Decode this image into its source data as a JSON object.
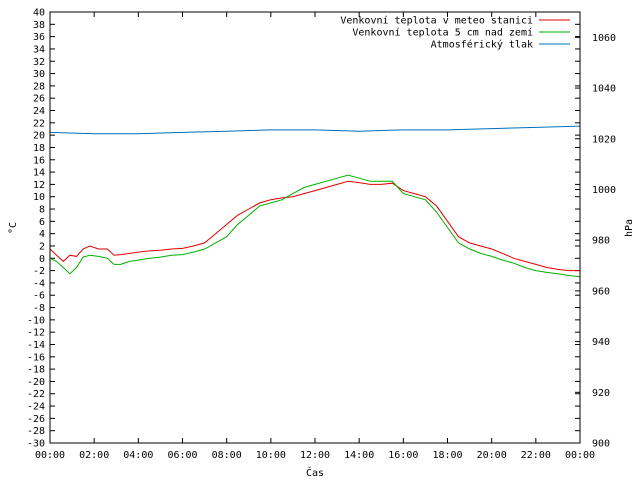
{
  "chart_data": {
    "type": "line",
    "title": "",
    "xlabel": "Čas",
    "ylabel_left": "°C",
    "ylabel_right": "hPa",
    "x_ticks": [
      "00:00",
      "02:00",
      "04:00",
      "06:00",
      "08:00",
      "10:00",
      "12:00",
      "14:00",
      "16:00",
      "18:00",
      "20:00",
      "22:00",
      "00:00"
    ],
    "xlim_hours": [
      0,
      24
    ],
    "ylim_left": [
      -30,
      40
    ],
    "ylim_right": [
      900,
      1070
    ],
    "left_ticks": [
      40,
      38,
      36,
      34,
      32,
      30,
      28,
      26,
      24,
      22,
      20,
      18,
      16,
      14,
      12,
      10,
      8,
      6,
      4,
      2,
      0,
      -2,
      -4,
      -6,
      -8,
      -10,
      -12,
      -14,
      -16,
      -18,
      -20,
      -22,
      -24,
      -26,
      -28,
      -30
    ],
    "right_ticks": [
      1060,
      1040,
      1020,
      1000,
      980,
      960,
      940,
      920,
      900
    ],
    "grid": false,
    "legend_position": "top-right",
    "series": [
      {
        "name": "Venkovní teplota v meteo stanici",
        "color": "#e00000",
        "axis": "left",
        "points": [
          [
            0,
            1.5
          ],
          [
            0.3,
            0.5
          ],
          [
            0.6,
            -0.5
          ],
          [
            0.9,
            0.5
          ],
          [
            1.2,
            0.3
          ],
          [
            1.5,
            1.5
          ],
          [
            1.8,
            2
          ],
          [
            2.2,
            1.5
          ],
          [
            2.6,
            1.5
          ],
          [
            2.9,
            0.5
          ],
          [
            3.2,
            0.6
          ],
          [
            3.6,
            0.8
          ],
          [
            4,
            1
          ],
          [
            4.5,
            1.2
          ],
          [
            5,
            1.3
          ],
          [
            5.5,
            1.5
          ],
          [
            6,
            1.6
          ],
          [
            6.5,
            2
          ],
          [
            7,
            2.5
          ],
          [
            7.5,
            4
          ],
          [
            8,
            5.5
          ],
          [
            8.5,
            7
          ],
          [
            9,
            8
          ],
          [
            9.5,
            9
          ],
          [
            10,
            9.5
          ],
          [
            10.5,
            9.8
          ],
          [
            11,
            10
          ],
          [
            11.5,
            10.5
          ],
          [
            12,
            11
          ],
          [
            12.5,
            11.5
          ],
          [
            13,
            12
          ],
          [
            13.5,
            12.5
          ],
          [
            14,
            12.3
          ],
          [
            14.5,
            12
          ],
          [
            15,
            12
          ],
          [
            15.5,
            12.2
          ],
          [
            16,
            11
          ],
          [
            16.5,
            10.5
          ],
          [
            17,
            10
          ],
          [
            17.5,
            8.5
          ],
          [
            18,
            6
          ],
          [
            18.5,
            3.5
          ],
          [
            19,
            2.5
          ],
          [
            19.5,
            2
          ],
          [
            20,
            1.5
          ],
          [
            20.5,
            0.8
          ],
          [
            21,
            0
          ],
          [
            21.5,
            -0.5
          ],
          [
            22,
            -1
          ],
          [
            22.5,
            -1.5
          ],
          [
            23,
            -1.8
          ],
          [
            23.5,
            -2
          ],
          [
            24,
            -2
          ]
        ]
      },
      {
        "name": "Venkovní teplota 5 cm nad zemí",
        "color": "#00b000",
        "axis": "left",
        "points": [
          [
            0,
            0
          ],
          [
            0.3,
            -0.5
          ],
          [
            0.6,
            -1.5
          ],
          [
            0.9,
            -2.5
          ],
          [
            1.2,
            -1.5
          ],
          [
            1.5,
            0.2
          ],
          [
            1.8,
            0.5
          ],
          [
            2.2,
            0.3
          ],
          [
            2.6,
            0
          ],
          [
            2.9,
            -1
          ],
          [
            3.2,
            -1
          ],
          [
            3.6,
            -0.5
          ],
          [
            4,
            -0.3
          ],
          [
            4.5,
            0
          ],
          [
            5,
            0.2
          ],
          [
            5.5,
            0.5
          ],
          [
            6,
            0.6
          ],
          [
            6.5,
            1
          ],
          [
            7,
            1.5
          ],
          [
            7.5,
            2.5
          ],
          [
            8,
            3.5
          ],
          [
            8.5,
            5.5
          ],
          [
            9,
            7
          ],
          [
            9.5,
            8.5
          ],
          [
            10,
            9
          ],
          [
            10.5,
            9.5
          ],
          [
            11,
            10.5
          ],
          [
            11.5,
            11.5
          ],
          [
            12,
            12
          ],
          [
            12.5,
            12.5
          ],
          [
            13,
            13
          ],
          [
            13.5,
            13.5
          ],
          [
            14,
            13
          ],
          [
            14.5,
            12.5
          ],
          [
            15,
            12.5
          ],
          [
            15.5,
            12.5
          ],
          [
            16,
            10.5
          ],
          [
            16.5,
            10
          ],
          [
            17,
            9.5
          ],
          [
            17.5,
            7.5
          ],
          [
            18,
            5
          ],
          [
            18.5,
            2.5
          ],
          [
            19,
            1.5
          ],
          [
            19.5,
            0.8
          ],
          [
            20,
            0.3
          ],
          [
            20.5,
            -0.3
          ],
          [
            21,
            -0.8
          ],
          [
            21.5,
            -1.5
          ],
          [
            22,
            -2
          ],
          [
            22.5,
            -2.3
          ],
          [
            23,
            -2.5
          ],
          [
            23.5,
            -2.8
          ],
          [
            24,
            -3
          ]
        ]
      },
      {
        "name": "Atmosférický tlak",
        "color": "#0070c0",
        "axis": "right",
        "points": [
          [
            0,
            1022.5
          ],
          [
            2,
            1022
          ],
          [
            4,
            1022
          ],
          [
            6,
            1022.5
          ],
          [
            8,
            1023
          ],
          [
            10,
            1023.5
          ],
          [
            12,
            1023.5
          ],
          [
            14,
            1023
          ],
          [
            16,
            1023.5
          ],
          [
            18,
            1023.5
          ],
          [
            20,
            1024
          ],
          [
            22,
            1024.5
          ],
          [
            24,
            1025
          ]
        ]
      }
    ]
  }
}
